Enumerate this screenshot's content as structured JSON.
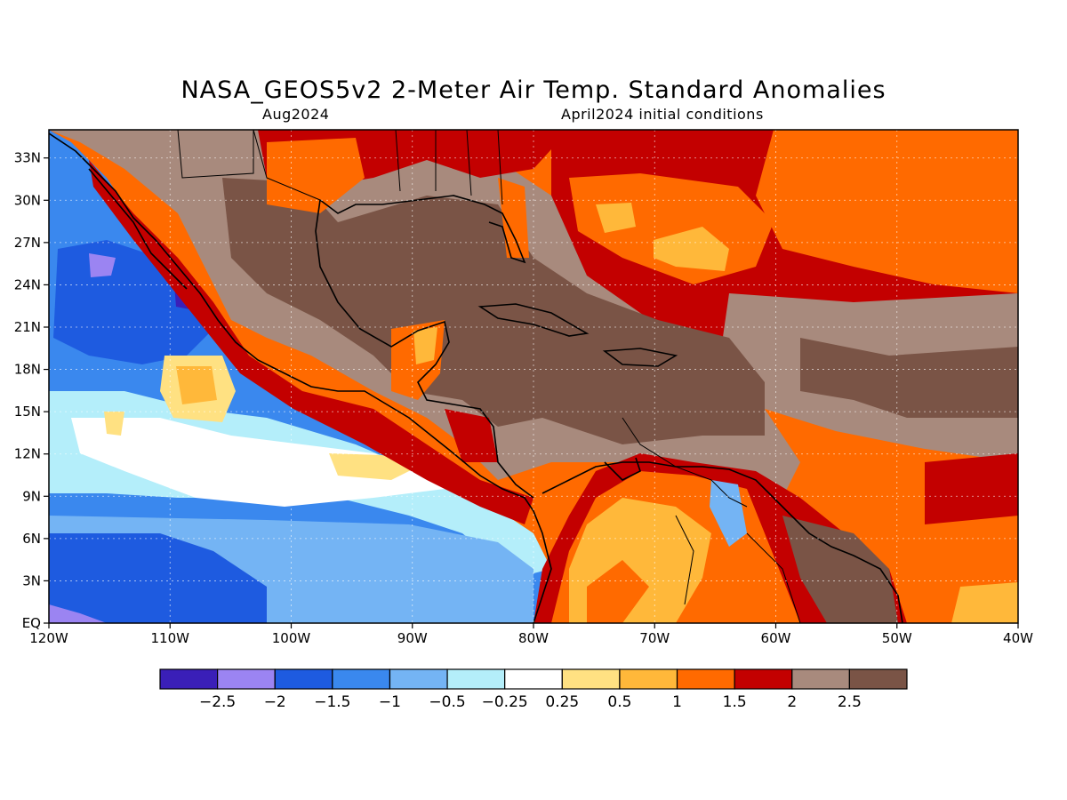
{
  "title": "NASA_GEOS5v2 2-Meter Air Temp. Standard Anomalies",
  "valid_period": "Aug2024",
  "init_conditions": "April2024 initial conditions",
  "map": {
    "lon_range": [
      -120,
      -40
    ],
    "lat_range": [
      0,
      35
    ],
    "grid": true,
    "lon_ticks": [
      {
        "value": -120,
        "label": "120W"
      },
      {
        "value": -110,
        "label": "110W"
      },
      {
        "value": -100,
        "label": "100W"
      },
      {
        "value": -90,
        "label": "90W"
      },
      {
        "value": -80,
        "label": "80W"
      },
      {
        "value": -70,
        "label": "70W"
      },
      {
        "value": -60,
        "label": "60W"
      },
      {
        "value": -50,
        "label": "50W"
      },
      {
        "value": -40,
        "label": "40W"
      }
    ],
    "lat_ticks": [
      {
        "value": 0,
        "label": "EQ"
      },
      {
        "value": 3,
        "label": "3N"
      },
      {
        "value": 6,
        "label": "6N"
      },
      {
        "value": 9,
        "label": "9N"
      },
      {
        "value": 12,
        "label": "12N"
      },
      {
        "value": 15,
        "label": "15N"
      },
      {
        "value": 18,
        "label": "18N"
      },
      {
        "value": 21,
        "label": "21N"
      },
      {
        "value": 24,
        "label": "24N"
      },
      {
        "value": 27,
        "label": "27N"
      },
      {
        "value": 30,
        "label": "30N"
      },
      {
        "value": 33,
        "label": "33N"
      }
    ]
  },
  "colorbar": {
    "colors": [
      "#3a1fb8",
      "#9b84f2",
      "#1e5be0",
      "#3a88ee",
      "#74b4f4",
      "#b4eefa",
      "#ffffff",
      "#ffe182",
      "#ffb83a",
      "#ff6a00",
      "#c30000",
      "#a88a7d",
      "#7a5446"
    ],
    "labels": [
      "-2.5",
      "-2",
      "-1.5",
      "-1",
      "-0.5",
      "-0.25",
      "0.25",
      "0.5",
      "1",
      "1.5",
      "2",
      "2.5"
    ]
  }
}
